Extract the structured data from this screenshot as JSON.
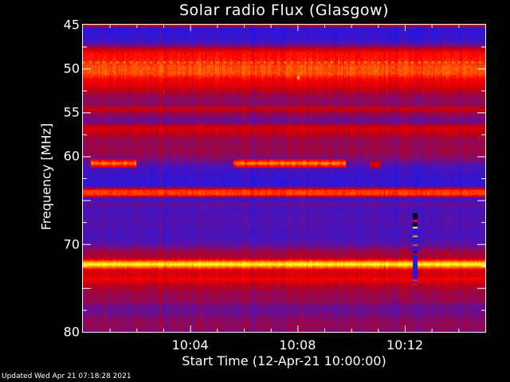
{
  "chart_data": {
    "type": "heatmap",
    "title": "Solar radio Flux (Glasgow)",
    "xlabel": "Start Time (12-Apr-21 10:00:00)",
    "ylabel": "Frequency [MHz]",
    "x_unit": "minutes after 10:00:00",
    "xlim": [
      0,
      15
    ],
    "ylim": [
      45,
      80
    ],
    "y_inverted": true,
    "x_tick_labels": [
      {
        "t": 4,
        "label": "10:04"
      },
      {
        "t": 8,
        "label": "10:08"
      },
      {
        "t": 12,
        "label": "10:12"
      }
    ],
    "y_tick_labels": [
      {
        "f": 45,
        "label": "45"
      },
      {
        "f": 50,
        "label": "50"
      },
      {
        "f": 55,
        "label": "55"
      },
      {
        "f": 60,
        "label": "60"
      },
      {
        "f": 70,
        "label": "70"
      },
      {
        "f": 80,
        "label": "80"
      }
    ],
    "colormap": [
      "#000000",
      "#000080",
      "#1818f0",
      "#6010a0",
      "#c00010",
      "#ff0000",
      "#ff8000",
      "#ffff00",
      "#ffffff"
    ],
    "background_profile": [
      [
        45.0,
        0.62
      ],
      [
        45.3,
        0.35
      ],
      [
        45.6,
        0.28
      ],
      [
        47.0,
        0.32
      ],
      [
        47.6,
        0.46
      ],
      [
        48.2,
        0.62
      ],
      [
        49.0,
        0.64
      ],
      [
        49.8,
        0.7
      ],
      [
        50.6,
        0.7
      ],
      [
        51.3,
        0.6
      ],
      [
        52.0,
        0.55
      ],
      [
        53.0,
        0.45
      ],
      [
        54.0,
        0.42
      ],
      [
        54.6,
        0.52
      ],
      [
        55.2,
        0.44
      ],
      [
        56.0,
        0.38
      ],
      [
        56.8,
        0.55
      ],
      [
        57.4,
        0.5
      ],
      [
        58.2,
        0.44
      ],
      [
        59.5,
        0.45
      ],
      [
        60.5,
        0.4
      ],
      [
        61.2,
        0.33
      ],
      [
        62.5,
        0.3
      ],
      [
        63.4,
        0.3
      ],
      [
        63.9,
        0.68
      ],
      [
        64.4,
        0.68
      ],
      [
        64.8,
        0.3
      ],
      [
        65.5,
        0.38
      ],
      [
        66.0,
        0.33
      ],
      [
        67.5,
        0.35
      ],
      [
        69.0,
        0.33
      ],
      [
        70.0,
        0.36
      ],
      [
        70.8,
        0.45
      ],
      [
        71.6,
        0.48
      ],
      [
        72.0,
        0.75
      ],
      [
        72.3,
        0.9
      ],
      [
        72.6,
        0.75
      ],
      [
        73.0,
        0.55
      ],
      [
        73.6,
        0.54
      ],
      [
        74.0,
        0.6
      ],
      [
        74.6,
        0.5
      ],
      [
        75.5,
        0.45
      ],
      [
        76.5,
        0.44
      ],
      [
        77.3,
        0.38
      ],
      [
        78.0,
        0.4
      ],
      [
        79.0,
        0.44
      ],
      [
        80.0,
        0.42
      ]
    ],
    "periodic_band": {
      "freq": 49.3,
      "level": 0.8,
      "period_min": 0.25
    },
    "events": [
      {
        "t_start": 0.3,
        "t_end": 2.0,
        "freq": 60.8,
        "level": 0.8
      },
      {
        "t_start": 5.6,
        "t_end": 9.8,
        "freq": 60.8,
        "level": 0.82
      },
      {
        "t_start": 10.7,
        "t_end": 11.1,
        "freq": 60.9,
        "level": 0.62
      },
      {
        "t_start": 8.0,
        "t_end": 8.08,
        "freq": 51.0,
        "level": 0.9
      },
      {
        "t_start": 3.0,
        "t_end": 3.06,
        "freq": 52.7,
        "level": 0.65
      }
    ],
    "spike": {
      "t": 12.4,
      "f_start": 66.5,
      "f_end": 74.6
    }
  },
  "footer": "Updated Wed Apr 21 07:18:28 2021"
}
